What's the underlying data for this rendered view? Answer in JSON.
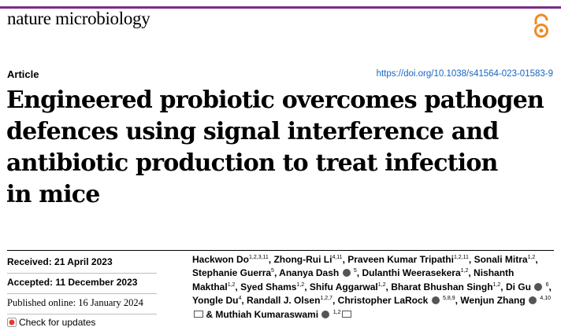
{
  "header": {
    "journal_name": "nature microbiology",
    "accent_color": "#7b2d86",
    "open_access_icon": "open-access-icon",
    "open_access_color": "#f08a24"
  },
  "article": {
    "type_label": "Article",
    "doi": "https://doi.org/10.1038/s41564-023-01583-9",
    "title_lines": [
      "Engineered probiotic overcomes pathogen",
      "defences using signal interference and",
      "antibiotic production to treat infection",
      "in mice"
    ]
  },
  "dates": {
    "received": "Received: 21 April 2023",
    "accepted": "Accepted: 11 December 2023",
    "published": "Published online: 16 January 2024",
    "check_updates": "Check for updates"
  },
  "authors": [
    {
      "name": "Hackwon Do",
      "aff": "1,2,3,11",
      "orcid": false
    },
    {
      "name": "Zhong-Rui Li",
      "aff": "4,11",
      "orcid": false
    },
    {
      "name": "Praveen Kumar Tripathi",
      "aff": "1,2,11",
      "orcid": false
    },
    {
      "name": "Sonali Mitra",
      "aff": "1,2",
      "orcid": false
    },
    {
      "name": "Stephanie Guerra",
      "aff": "5",
      "orcid": false
    },
    {
      "name": "Ananya Dash",
      "aff": "5",
      "orcid": true
    },
    {
      "name": "Dulanthi Weerasekera",
      "aff": "1,2",
      "orcid": false
    },
    {
      "name": "Nishanth Makthal",
      "aff": "1,2",
      "orcid": false
    },
    {
      "name": "Syed Shams",
      "aff": "1,2",
      "orcid": false
    },
    {
      "name": "Shifu Aggarwal",
      "aff": "1,2",
      "orcid": false
    },
    {
      "name": "Bharat Bhushan Singh",
      "aff": "1,2",
      "orcid": false
    },
    {
      "name": "Di Gu",
      "aff": "6",
      "orcid": true
    },
    {
      "name": "Yongle Du",
      "aff": "4",
      "orcid": false
    },
    {
      "name": "Randall J. Olsen",
      "aff": "1,2,7",
      "orcid": false
    },
    {
      "name": "Christopher LaRock",
      "aff": "5,8,9",
      "orcid": true
    },
    {
      "name": "Wenjun Zhang",
      "aff": "4,10",
      "orcid": true,
      "mail": true
    },
    {
      "name": "Muthiah Kumaraswami",
      "aff": "1,2",
      "orcid": true,
      "mail": true,
      "prefix": "& "
    }
  ]
}
